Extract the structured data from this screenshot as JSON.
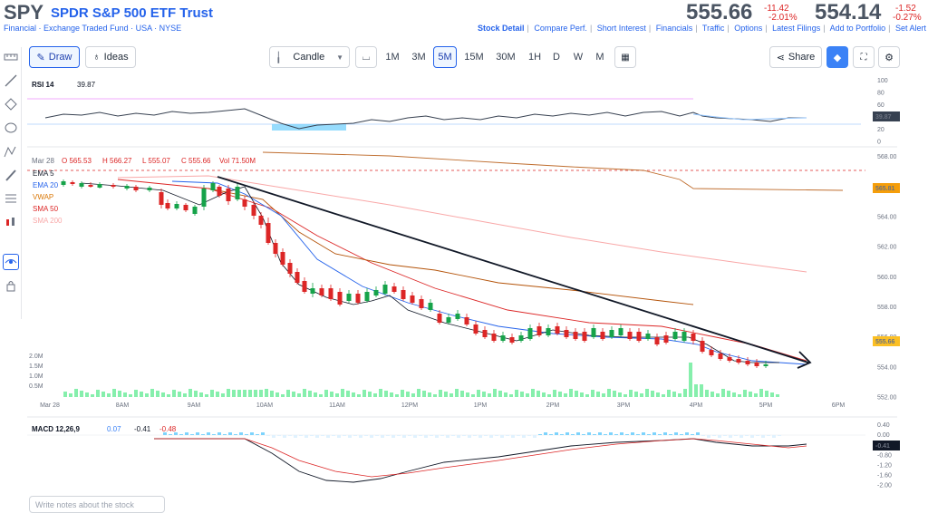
{
  "header": {
    "ticker": "SPY",
    "company": "SPDR S&P 500 ETF Trust",
    "meta": "Financial · Exchange Traded Fund · USA · NYSE",
    "price1": "555.66",
    "chg1_abs": "-11.42",
    "chg1_pct": "-2.01%",
    "price2": "554.14",
    "chg2_abs": "-1.52",
    "chg2_pct": "-0.27%",
    "links": [
      "Stock Detail",
      "Compare Perf.",
      "Short Interest",
      "Financials",
      "Traffic",
      "Options",
      "Latest Filings",
      "Add to Portfolio",
      "Set Alert"
    ]
  },
  "toolbar": {
    "draw_label": "Draw",
    "ideas_label": "Ideas",
    "chart_type": "Candle",
    "timeframes": [
      "1M",
      "3M",
      "5M",
      "15M",
      "30M",
      "1H",
      "D",
      "W",
      "M"
    ],
    "active_timeframe": "5M",
    "share_label": "Share"
  },
  "rsi": {
    "label": "RSI 14",
    "value": "39.87",
    "axis": [
      "100",
      "80",
      "60",
      "40",
      "20",
      "0"
    ],
    "badge": "39.87"
  },
  "price_panel": {
    "ohlc": {
      "date": "Mar 28",
      "o": "O 565.53",
      "h": "H 566.27",
      "l": "L 555.07",
      "c": "C 555.66",
      "vol": "Vol 71.50M"
    },
    "legend": [
      {
        "name": "EMA 5",
        "color": "#111827"
      },
      {
        "name": "EMA 20",
        "color": "#2563eb"
      },
      {
        "name": "VWAP",
        "color": "#d97706"
      },
      {
        "name": "SMA 50",
        "color": "#dc2626"
      },
      {
        "name": "SMA 200",
        "color": "#f9a8a8"
      }
    ],
    "y_axis": [
      "568.00",
      "566.00",
      "564.00",
      "562.00",
      "560.00",
      "558.00",
      "556.00",
      "554.00",
      "552.00"
    ],
    "vwap_badge": "565.81",
    "price_badge": "555.66",
    "volume_axis": [
      "2.0M",
      "1.5M",
      "1.0M",
      "0.5M"
    ],
    "x_axis": [
      "Mar 28",
      "8AM",
      "9AM",
      "10AM",
      "11AM",
      "12PM",
      "1PM",
      "2PM",
      "3PM",
      "4PM",
      "5PM",
      "6PM"
    ]
  },
  "macd": {
    "label": "MACD 12,26,9",
    "v1": "0.07",
    "v2": "-0.41",
    "v3": "-0.48",
    "axis": [
      "0.40",
      "0.00",
      "-0.40",
      "-0.80",
      "-1.20",
      "-1.60",
      "-2.00"
    ],
    "badge": "-0.41"
  },
  "notes_placeholder": "Write notes about the stock",
  "colors": {
    "up": "#16a34a",
    "down": "#dc2626",
    "accent": "#2563eb"
  }
}
